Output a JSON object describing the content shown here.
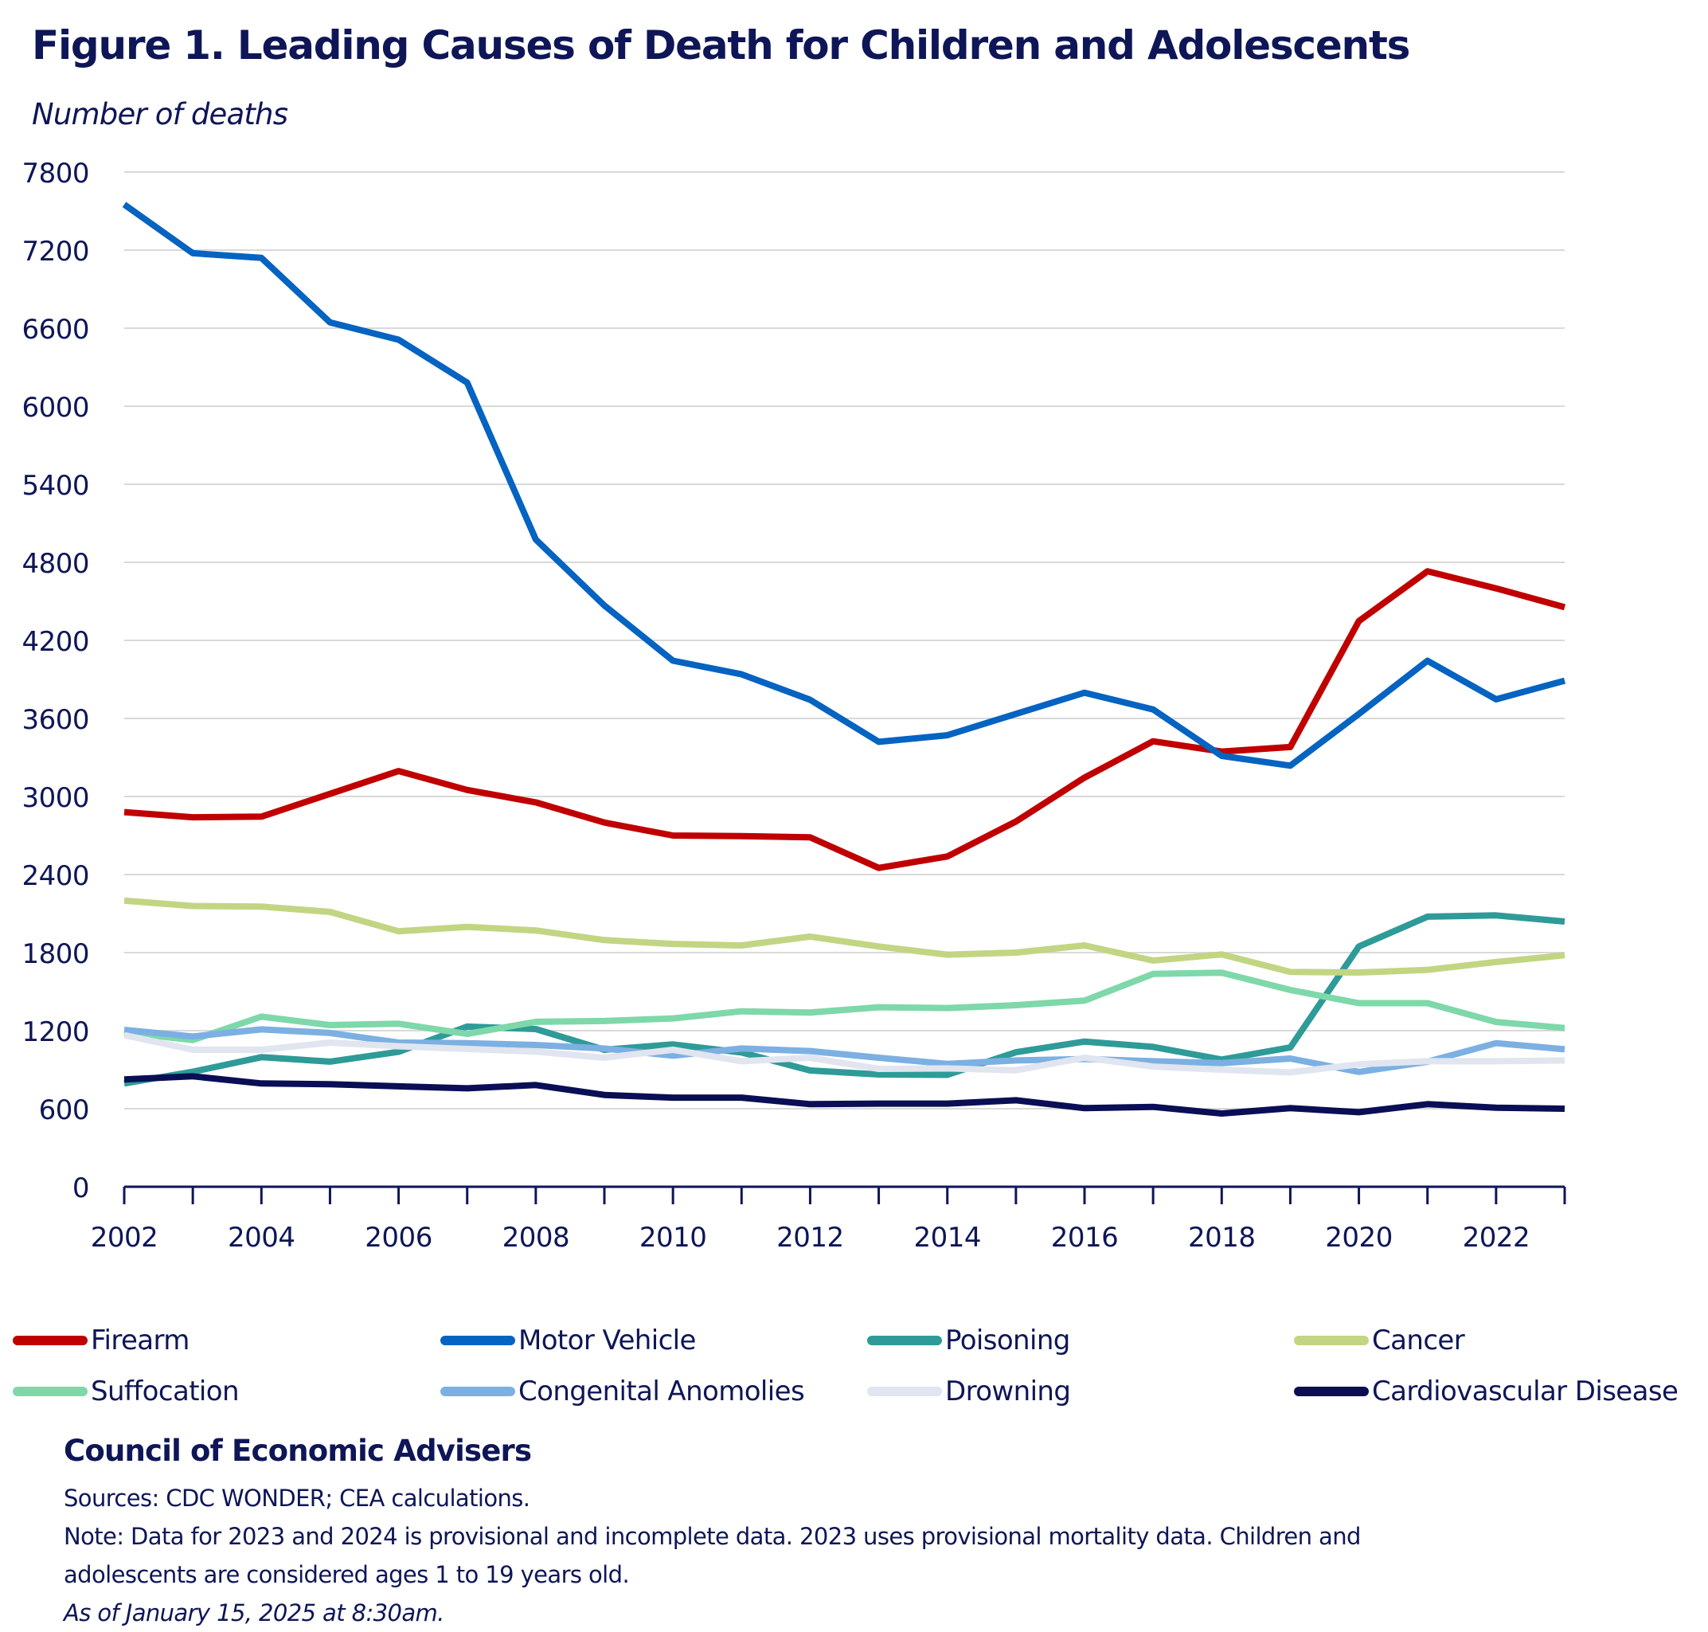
{
  "chart_data": {
    "type": "line",
    "title": "Figure 1. Leading Causes of Death for Children and Adolescents",
    "ylabel": "Number of deaths",
    "xlabel": "",
    "ylim": [
      0,
      7800
    ],
    "yticks": [
      0,
      600,
      1200,
      1800,
      2400,
      3000,
      3600,
      4200,
      4800,
      5400,
      6000,
      6600,
      7200,
      7800
    ],
    "x": [
      2002,
      2003,
      2004,
      2005,
      2006,
      2007,
      2008,
      2009,
      2010,
      2011,
      2012,
      2013,
      2014,
      2015,
      2016,
      2017,
      2018,
      2019,
      2020,
      2021,
      2022,
      2023
    ],
    "xtick_labels": [
      "2002",
      "2004",
      "2006",
      "2008",
      "2010",
      "2012",
      "2014",
      "2016",
      "2018",
      "2020",
      "2022"
    ],
    "grid": "horizontal",
    "legend_position": "bottom",
    "series": [
      {
        "name": "Firearm",
        "color": "#C00000",
        "values": [
          2880,
          2840,
          2845,
          3020,
          3195,
          3050,
          2955,
          2800,
          2700,
          2695,
          2686,
          2451,
          2539,
          2808,
          3145,
          3424,
          3345,
          3380,
          4349,
          4731,
          4600,
          4455
        ]
      },
      {
        "name": "Motor Vehicle",
        "color": "#0563C1",
        "values": [
          7551,
          7176,
          7140,
          6645,
          6511,
          6181,
          4975,
          4468,
          4044,
          3939,
          3743,
          3420,
          3471,
          3635,
          3798,
          3669,
          3312,
          3237,
          3635,
          4043,
          3747,
          3890
        ]
      },
      {
        "name": "Poisoning",
        "color": "#2E9B98",
        "values": [
          794,
          884,
          996,
          962,
          1037,
          1231,
          1212,
          1053,
          1094,
          1032,
          894,
          863,
          860,
          1034,
          1116,
          1075,
          978,
          1071,
          1847,
          2076,
          2086,
          2039
        ]
      },
      {
        "name": "Cancer",
        "color": "#C2D583",
        "values": [
          2199,
          2158,
          2154,
          2113,
          1964,
          1998,
          1970,
          1896,
          1867,
          1855,
          1923,
          1847,
          1784,
          1800,
          1855,
          1739,
          1786,
          1651,
          1647,
          1667,
          1728,
          1780
        ]
      },
      {
        "name": "Suffocation",
        "color": "#7ED8A9",
        "values": [
          1186,
          1128,
          1308,
          1243,
          1253,
          1175,
          1268,
          1274,
          1294,
          1349,
          1339,
          1380,
          1374,
          1396,
          1431,
          1636,
          1646,
          1513,
          1411,
          1411,
          1267,
          1220
        ]
      },
      {
        "name": "Congenital Anomolies",
        "color": "#7CB0E2",
        "values": [
          1206,
          1155,
          1210,
          1182,
          1108,
          1104,
          1090,
          1063,
          1008,
          1063,
          1043,
          992,
          945,
          971,
          982,
          965,
          951,
          986,
          883,
          961,
          1104,
          1057
        ]
      },
      {
        "name": "Drowning",
        "color": "#E0E5F0",
        "values": [
          1165,
          1053,
          1053,
          1108,
          1080,
          1059,
          1039,
          992,
          1053,
          965,
          992,
          906,
          910,
          896,
          992,
          924,
          900,
          879,
          941,
          965,
          965,
          971
        ]
      },
      {
        "name": "Cardiovascular Disease",
        "color": "#0A0E55",
        "values": [
          825,
          849,
          794,
          788,
          772,
          757,
          782,
          706,
          685,
          685,
          635,
          639,
          639,
          665,
          604,
          614,
          563,
          604,
          573,
          635,
          608,
          600
        ]
      }
    ]
  },
  "header": {
    "title": "Figure 1. Leading Causes of Death for Children and Adolescents",
    "subtitle": "Number of deaths"
  },
  "legend": {
    "items": [
      {
        "label": "Firearm",
        "color": "#C00000"
      },
      {
        "label": "Motor Vehicle",
        "color": "#0563C1"
      },
      {
        "label": "Poisoning",
        "color": "#2E9B98"
      },
      {
        "label": "Cancer",
        "color": "#C2D583"
      },
      {
        "label": "Suffocation",
        "color": "#7ED8A9"
      },
      {
        "label": "Congenital Anomolies",
        "color": "#7CB0E2"
      },
      {
        "label": "Drowning",
        "color": "#E0E5F0"
      },
      {
        "label": "Cardiovascular Disease",
        "color": "#0A0E55"
      }
    ]
  },
  "footer": {
    "organization": "Council of Economic Advisers",
    "sources": "Sources: CDC WONDER; CEA calculations.",
    "note_line1": "Note: Data for 2023 and 2024 is provisional and incomplete data. 2023 uses provisional mortality data. Children and",
    "note_line2": "adolescents are considered ages 1 to 19 years old.",
    "as_of": "As of January 15, 2025 at 8:30am."
  },
  "colors": {
    "text": "#0E1657",
    "gridline": "#D9D9D9",
    "axis": "#0E1657"
  }
}
